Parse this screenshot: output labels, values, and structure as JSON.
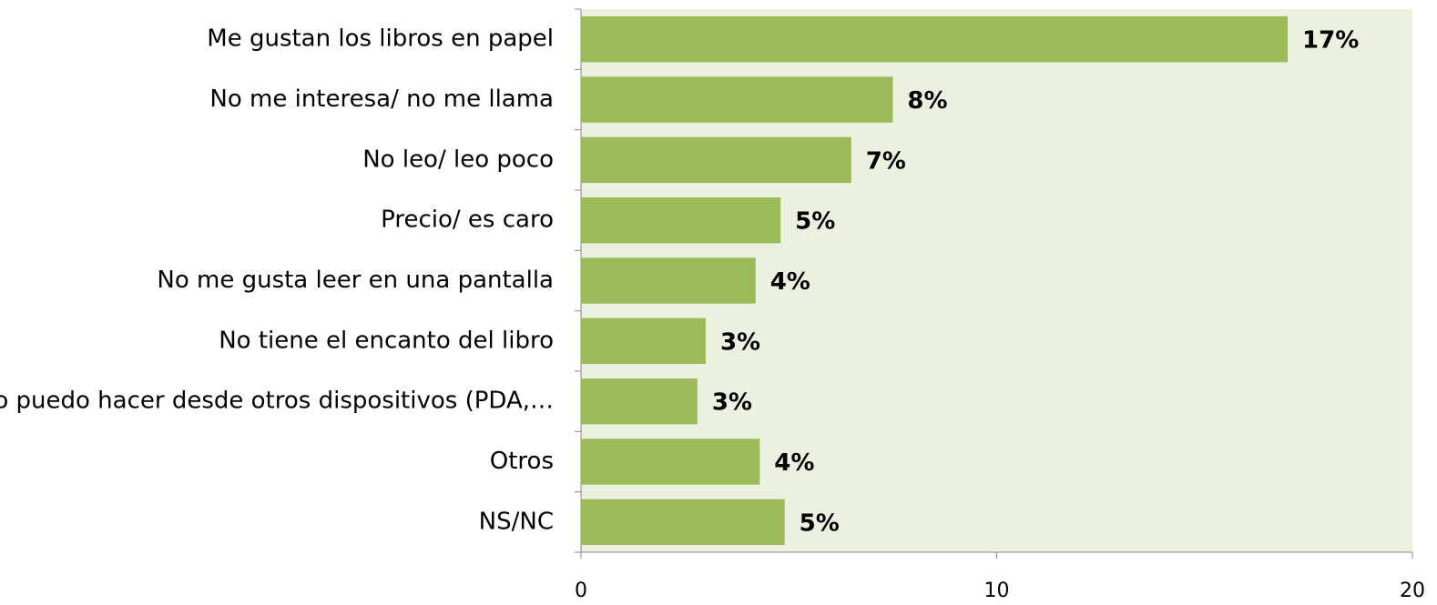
{
  "chart_data": {
    "type": "bar",
    "orientation": "horizontal",
    "categories": [
      "Me gustan los libros en papel",
      "No me interesa/ no me llama",
      "No leo/ leo poco",
      "Precio/ es caro",
      "No me gusta leer en una pantalla",
      "No tiene el encanto del libro",
      "Lo puedo hacer desde otros dispositivos (PDA,…",
      "Otros",
      "NS/NC"
    ],
    "values": [
      17,
      7.5,
      6.5,
      4.8,
      4.2,
      3.0,
      2.8,
      4.3,
      4.9
    ],
    "value_labels": [
      "17%",
      "8%",
      "7%",
      "5%",
      "4%",
      "3%",
      "3%",
      "4%",
      "5%"
    ],
    "color": "#9bbb59",
    "background": "#ebf1de",
    "xlim": [
      0,
      20
    ],
    "xticks": [
      0,
      10,
      20
    ]
  }
}
